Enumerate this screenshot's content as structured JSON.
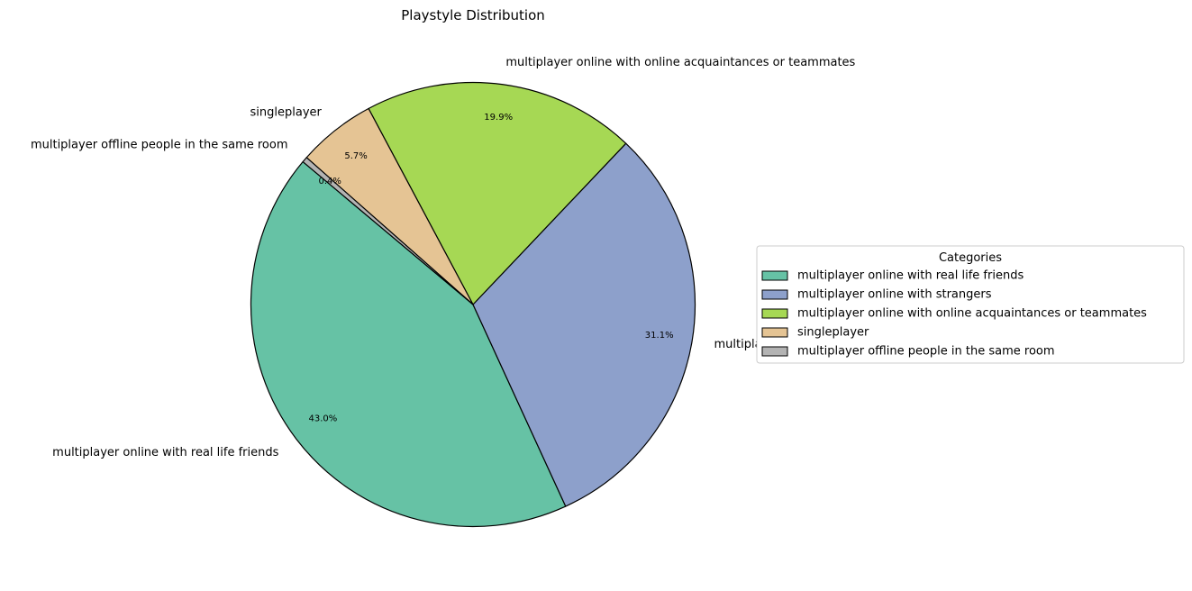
{
  "chart_data": {
    "type": "pie",
    "title": "Playstyle Distribution",
    "start_angle_deg": 140,
    "direction": "counterclockwise",
    "slices": [
      {
        "label": "multiplayer  online  with real life friends",
        "value": 43.0,
        "pct_label": "43.0%",
        "color": "#66c2a5"
      },
      {
        "label": "multiplayer  online  with strangers",
        "value": 31.1,
        "pct_label": "31.1%",
        "color": "#8da0cb"
      },
      {
        "label": "multiplayer  online  with online acquaintances or teammates",
        "value": 19.9,
        "pct_label": "19.9%",
        "color": "#a6d854"
      },
      {
        "label": "singleplayer",
        "value": 5.7,
        "pct_label": "5.7%",
        "color": "#e5c494"
      },
      {
        "label": "multiplayer  offline people in the same room",
        "value": 0.4,
        "pct_label": "0.4%",
        "color": "#b3b3b3"
      }
    ],
    "legend": {
      "title": "Categories",
      "placement": "center-right"
    }
  }
}
